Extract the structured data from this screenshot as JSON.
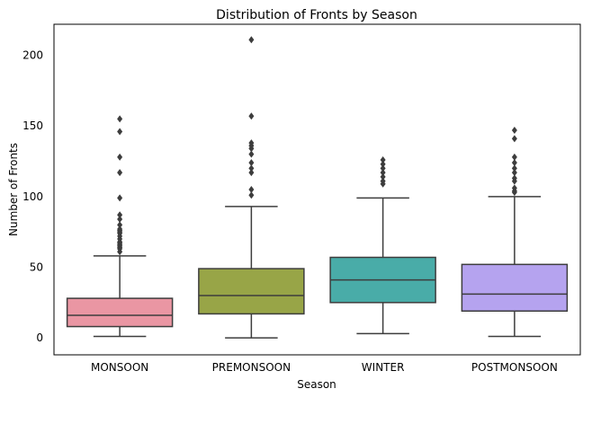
{
  "chart_data": {
    "type": "box",
    "title": "Distribution of Fronts by Season",
    "xlabel": "Season",
    "ylabel": "Number of Fronts",
    "categories": [
      "MONSOON",
      "PREMONSOON",
      "WINTER",
      "POSTMONSOON"
    ],
    "ylim": [
      -12,
      222
    ],
    "yticks": [
      0,
      50,
      100,
      150,
      200
    ],
    "grid": false,
    "boxes": [
      {
        "category": "MONSOON",
        "color": "#EA96A3",
        "whisker_low": 1,
        "q1": 8,
        "median": 16,
        "q3": 28,
        "whisker_high": 58,
        "outliers": [
          61,
          63,
          64,
          65,
          66,
          67,
          68,
          70,
          72,
          74,
          75,
          76,
          77,
          80,
          84,
          87,
          99,
          117,
          128,
          146,
          155
        ]
      },
      {
        "category": "PREMONSOON",
        "color": "#98A547",
        "whisker_low": 0,
        "q1": 17,
        "median": 30,
        "q3": 49,
        "whisker_high": 93,
        "outliers": [
          101,
          105,
          117,
          120,
          124,
          130,
          134,
          136,
          138,
          157,
          211
        ]
      },
      {
        "category": "WINTER",
        "color": "#49ACA8",
        "whisker_low": 3,
        "q1": 25,
        "median": 41,
        "q3": 57,
        "whisker_high": 99,
        "outliers": [
          109,
          111,
          114,
          117,
          120,
          123,
          126
        ]
      },
      {
        "category": "POSTMONSOON",
        "color": "#B5A3EF",
        "whisker_low": 1,
        "q1": 19,
        "median": 31,
        "q3": 52,
        "whisker_high": 100,
        "outliers": [
          103,
          104,
          106,
          111,
          113,
          117,
          120,
          124,
          128,
          141,
          147
        ]
      }
    ],
    "line_color": "#3D3D3D"
  }
}
